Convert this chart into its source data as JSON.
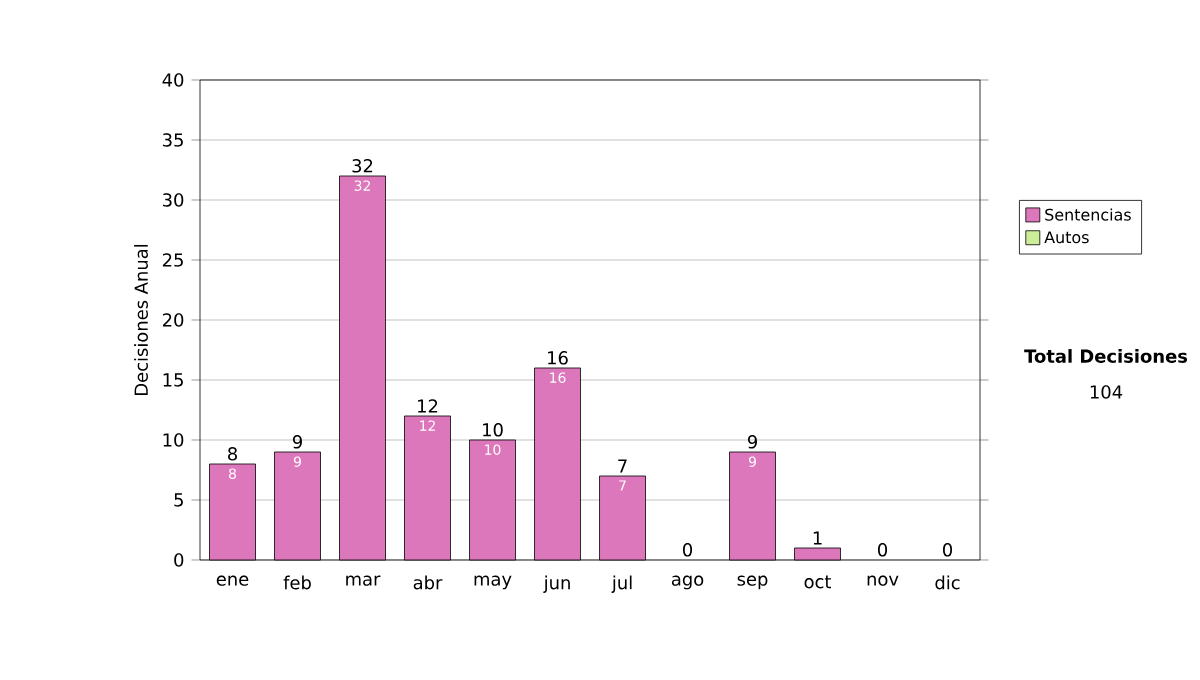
{
  "chart_data": {
    "type": "bar",
    "stacked": true,
    "ylabel": "Decisiones Anual",
    "categories": [
      "ene",
      "feb",
      "mar",
      "abr",
      "may",
      "jun",
      "jul",
      "ago",
      "sep",
      "oct",
      "nov",
      "dic"
    ],
    "series": [
      {
        "name": "Sentencias",
        "color": "#dd77bb",
        "values": [
          8,
          9,
          32,
          12,
          10,
          16,
          7,
          0,
          9,
          1,
          0,
          0
        ],
        "value_labels": [
          "8",
          "9",
          "32",
          "12",
          "10",
          "16",
          "7",
          null,
          "9",
          null,
          null,
          null
        ]
      },
      {
        "name": "Autos",
        "color": "#ccee99",
        "values": [
          0,
          0,
          0,
          0,
          0,
          0,
          0,
          0,
          0,
          0,
          0,
          0
        ]
      }
    ],
    "totals": [
      "8",
      "9",
      "32",
      "12",
      "10",
      "16",
      "7",
      "0",
      "9",
      "1",
      "0",
      "0"
    ],
    "ylim": [
      0,
      40
    ],
    "yticks": [
      0,
      5,
      10,
      15,
      20,
      25,
      30,
      35,
      40
    ],
    "grid": "y",
    "legend": "right",
    "annotations": [
      "Total Decisiones",
      "104"
    ]
  }
}
